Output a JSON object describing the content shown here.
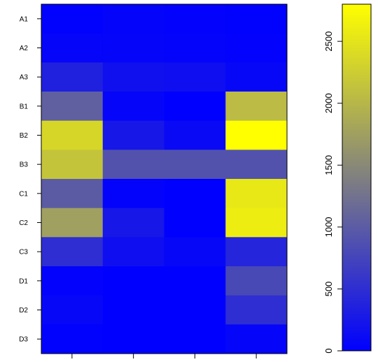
{
  "chart_data": {
    "type": "heatmap",
    "row_labels": [
      "A1",
      "A2",
      "A3",
      "B1",
      "B2",
      "B3",
      "C1",
      "C2",
      "C3",
      "D1",
      "D2",
      "D3"
    ],
    "column_count": 4,
    "column_labels": [
      "",
      "",
      "",
      ""
    ],
    "values": [
      [
        10,
        40,
        20,
        10
      ],
      [
        60,
        50,
        40,
        20
      ],
      [
        350,
        180,
        150,
        80
      ],
      [
        1050,
        60,
        0,
        2050
      ],
      [
        2350,
        250,
        100,
        2800
      ],
      [
        2150,
        900,
        900,
        900
      ],
      [
        1000,
        30,
        0,
        2550
      ],
      [
        1750,
        250,
        0,
        2600
      ],
      [
        500,
        150,
        80,
        400
      ],
      [
        20,
        0,
        0,
        800
      ],
      [
        80,
        0,
        0,
        500
      ],
      [
        10,
        0,
        0,
        50
      ]
    ],
    "colorbar": {
      "min": 0,
      "max": 2800,
      "ticks": [
        0,
        500,
        1000,
        1500,
        2000,
        2500
      ],
      "colors": [
        "#0000ff",
        "#808080",
        "#ffff00"
      ]
    },
    "title": "",
    "xlabel": "",
    "ylabel": ""
  }
}
